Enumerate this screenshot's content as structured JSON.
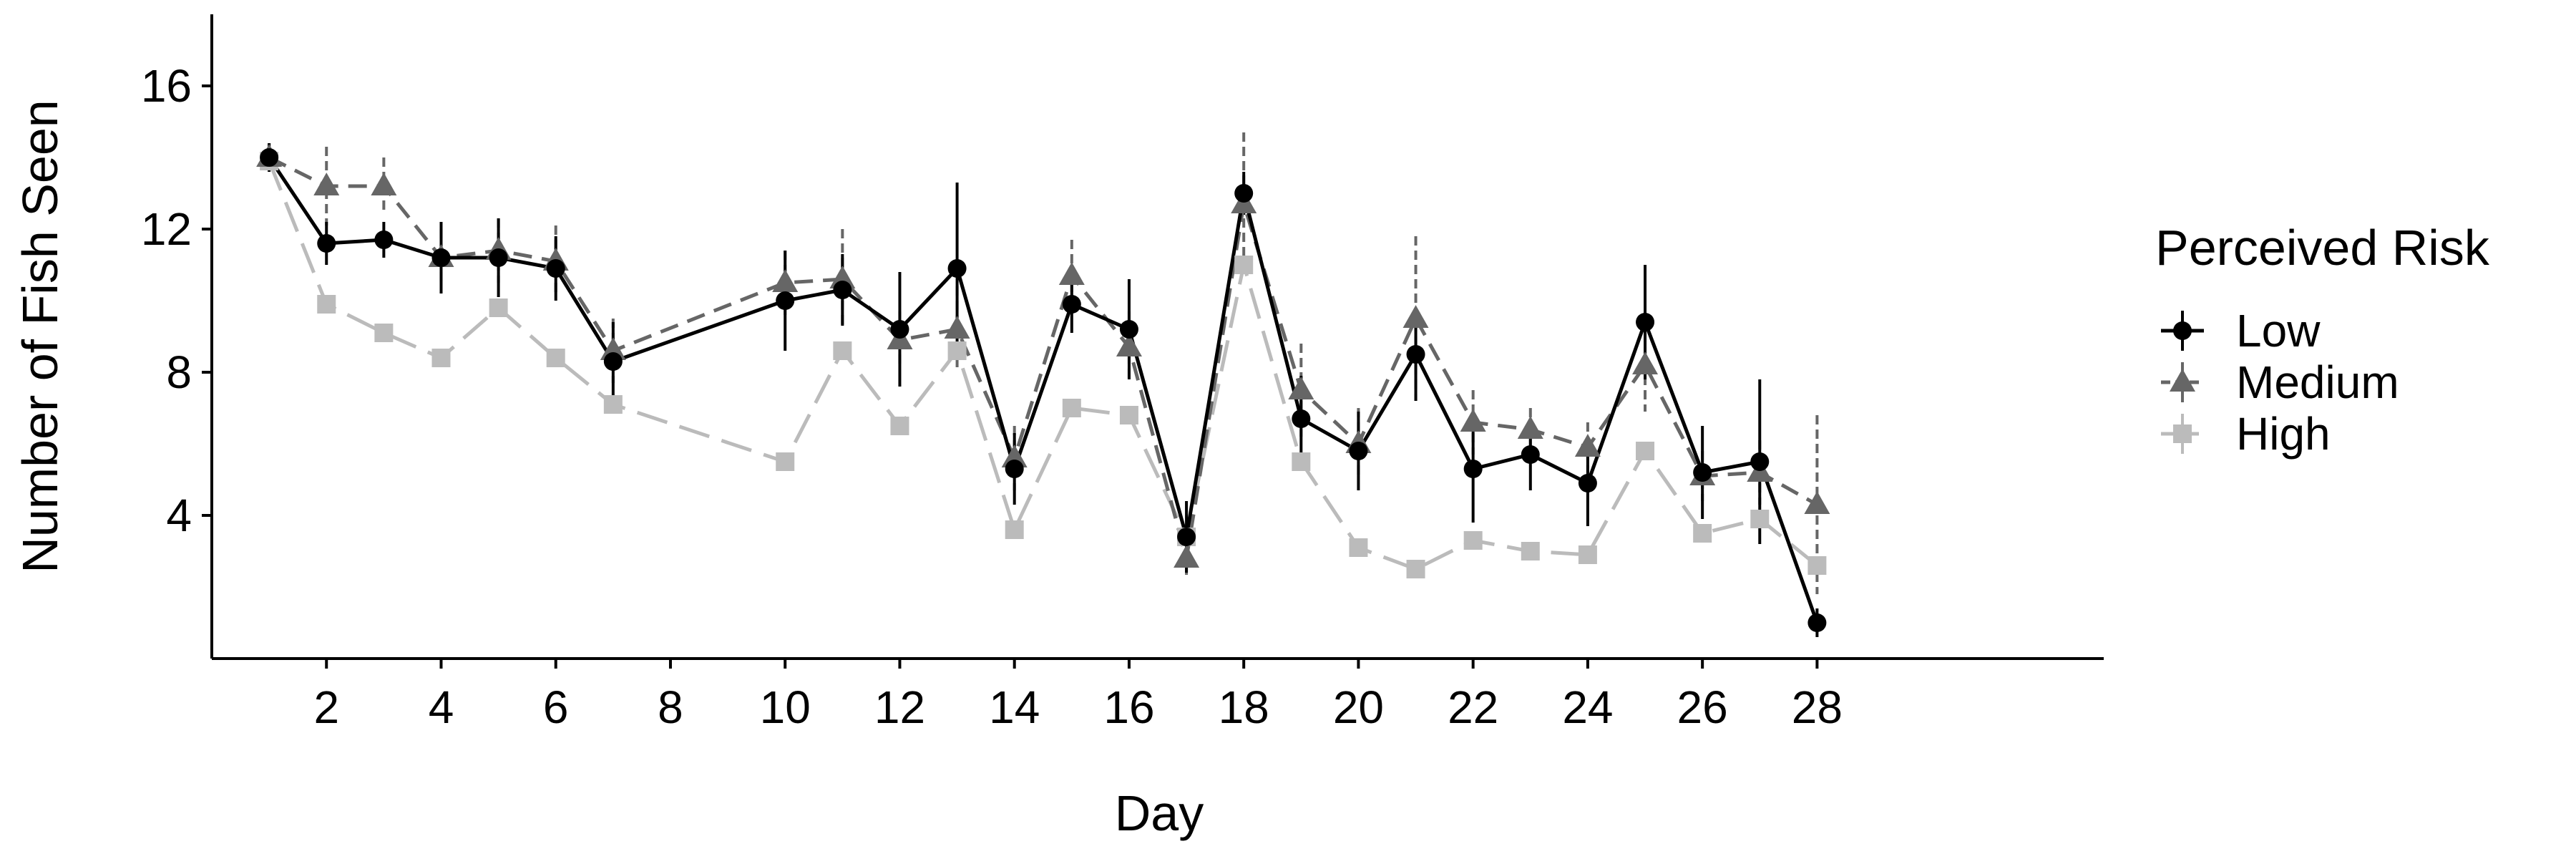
{
  "chart_data": {
    "type": "line",
    "xlabel": "Day",
    "ylabel": "Number of Fish Seen",
    "xlim": [
      0,
      33
    ],
    "ylim": [
      0,
      18
    ],
    "x_ticks": [
      2,
      4,
      6,
      8,
      10,
      12,
      14,
      16,
      18,
      20,
      22,
      24,
      26,
      28
    ],
    "y_ticks": [
      4,
      8,
      12,
      16
    ],
    "grid": false,
    "legend": {
      "title": "Perceived Risk",
      "position": "right"
    },
    "error_bars": true,
    "series": [
      {
        "name": "Low",
        "color": "#000000",
        "marker": "circle",
        "line_style": "solid",
        "x": [
          1,
          2,
          3,
          4,
          5,
          6,
          7,
          10,
          11,
          12,
          13,
          14,
          15,
          16,
          17,
          18,
          19,
          20,
          21,
          22,
          23,
          24,
          25,
          26,
          27,
          28
        ],
        "values": [
          14.0,
          11.6,
          11.7,
          11.2,
          11.2,
          10.9,
          8.3,
          10.0,
          10.3,
          9.2,
          10.9,
          5.3,
          9.9,
          9.2,
          3.4,
          13.0,
          6.7,
          5.8,
          8.5,
          5.3,
          5.7,
          4.9,
          9.4,
          5.2,
          5.5,
          1.0
        ],
        "errors": [
          0.4,
          0.6,
          0.5,
          1.0,
          1.1,
          0.9,
          1.1,
          1.4,
          1.0,
          1.6,
          2.4,
          1.0,
          0.8,
          1.4,
          1.0,
          0.6,
          1.2,
          1.1,
          1.3,
          1.5,
          1.0,
          1.2,
          1.6,
          1.3,
          2.3,
          0.4
        ]
      },
      {
        "name": "Medium",
        "color": "#666666",
        "marker": "triangle",
        "line_style": "dashed",
        "x": [
          1,
          2,
          3,
          4,
          5,
          6,
          7,
          10,
          11,
          12,
          13,
          14,
          15,
          16,
          17,
          18,
          19,
          20,
          21,
          22,
          23,
          24,
          25,
          26,
          27,
          28
        ],
        "values": [
          14.0,
          13.2,
          13.2,
          11.2,
          11.4,
          11.1,
          8.6,
          10.5,
          10.6,
          8.9,
          9.2,
          5.6,
          10.7,
          8.7,
          2.8,
          12.7,
          7.5,
          6.0,
          9.5,
          6.6,
          6.4,
          5.9,
          8.2,
          5.1,
          5.2,
          4.3
        ],
        "errors": [
          0.4,
          1.1,
          0.8,
          0.8,
          0.9,
          1.0,
          0.9,
          0.9,
          1.4,
          0.8,
          1.2,
          0.9,
          1.0,
          1.0,
          0.6,
          2.0,
          1.3,
          1.0,
          2.3,
          0.9,
          0.6,
          0.7,
          1.3,
          0.7,
          0.9,
          2.5
        ]
      },
      {
        "name": "High",
        "color": "#bbbbbb",
        "marker": "square",
        "line_style": "longdash",
        "x": [
          1,
          2,
          3,
          4,
          5,
          6,
          7,
          10,
          11,
          12,
          13,
          14,
          15,
          16,
          17,
          18,
          19,
          20,
          21,
          22,
          23,
          24,
          25,
          26,
          27,
          28
        ],
        "values": [
          13.9,
          9.9,
          9.1,
          8.4,
          9.8,
          8.4,
          7.1,
          5.5,
          8.6,
          6.5,
          8.6,
          3.6,
          7.0,
          6.8,
          3.4,
          11.0,
          5.5,
          3.1,
          2.5,
          3.3,
          3.0,
          2.9,
          5.8,
          3.5,
          3.9,
          2.6
        ]
      }
    ]
  }
}
